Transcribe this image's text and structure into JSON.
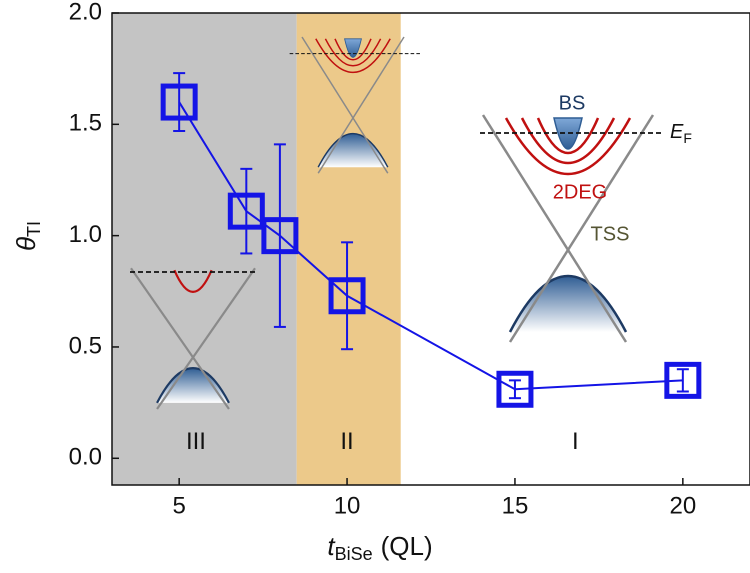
{
  "chart_data": {
    "type": "scatter",
    "x_label": {
      "symbol": "t",
      "subscript": "BiSe",
      "unit": "(QL)"
    },
    "y_label": {
      "symbol": "θ",
      "subscript": "TI"
    },
    "xlim": [
      3,
      22
    ],
    "ylim": [
      -0.12,
      2.0
    ],
    "xticks": [
      5,
      10,
      15,
      20
    ],
    "yticks": [
      {
        "value": 0,
        "label": "0.0"
      },
      {
        "value": 0.5,
        "label": "0.5"
      },
      {
        "value": 1,
        "label": "1.0"
      },
      {
        "value": 1.5,
        "label": "1.5"
      },
      {
        "value": 2,
        "label": "2.0"
      }
    ],
    "regions": [
      {
        "label": "III",
        "xlim": [
          3,
          8.5
        ],
        "label_x": 5.5,
        "color": "#c4c4c4"
      },
      {
        "label": "II",
        "xlim": [
          8.5,
          11.6
        ],
        "label_x": 10,
        "color": "#ecc98a"
      },
      {
        "label": "I",
        "xlim": [
          11.6,
          22
        ],
        "label_x": 16.8,
        "color": "#ffffff"
      }
    ],
    "series": [
      {
        "color": "#1414e6",
        "x": [
          5,
          7,
          8,
          10,
          15,
          20
        ],
        "values": [
          1.6,
          1.11,
          1.0,
          0.73,
          0.31,
          0.35
        ],
        "errors": [
          0.13,
          0.19,
          0.41,
          0.24,
          0.04,
          0.05
        ]
      }
    ],
    "annotations": {
      "bs": "BS",
      "ef": {
        "symbol": "E",
        "subscript": "F"
      },
      "twodeg": "2DEG",
      "tss": "TSS"
    }
  }
}
